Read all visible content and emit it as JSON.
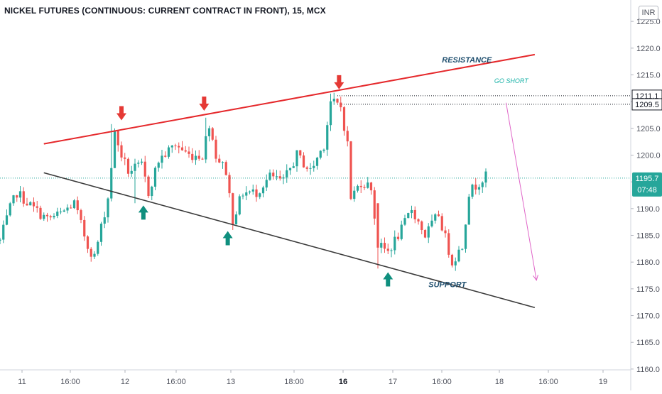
{
  "title": "NICKEL FUTURES (CONTINUOUS: CURRENT CONTRACT IN FRONT), 15, MCX",
  "currency": "INR",
  "colors": {
    "up": "#26a69a",
    "down": "#ef5350",
    "resistance": "#e5282b",
    "support": "#3a3a3a",
    "annotation_text": "#1e4e6e",
    "go_short_text": "#1bb3a8",
    "projection": "#e066c8",
    "up_arrow": "#0f8f7e",
    "down_arrow": "#e53935",
    "price_badge": "#26a69a"
  },
  "chart_data": {
    "type": "candlestick",
    "y_axis": {
      "ticks": [
        "1160.0",
        "1165.0",
        "1170.0",
        "1175.0",
        "1180.0",
        "1185.0",
        "1190.0",
        "1195.0",
        "1200.0",
        "1205.0",
        "1210.0",
        "1215.0",
        "1220.0",
        "1225.0"
      ],
      "range": [
        1156,
        1229
      ]
    },
    "x_axis": {
      "ticks": [
        {
          "label": "11",
          "bold": false
        },
        {
          "label": "16:00",
          "bold": false
        },
        {
          "label": "12",
          "bold": false
        },
        {
          "label": "16:00",
          "bold": false
        },
        {
          "label": "13",
          "bold": false
        },
        {
          "label": "18:00",
          "bold": false
        },
        {
          "label": "16",
          "bold": true
        },
        {
          "label": "17",
          "bold": false
        },
        {
          "label": "16:00",
          "bold": false
        },
        {
          "label": "18",
          "bold": false
        },
        {
          "label": "16:00",
          "bold": false
        },
        {
          "label": "19",
          "bold": false
        }
      ]
    },
    "price_levels": [
      {
        "value": 1211.1,
        "label": "1211.1",
        "style": "dotted"
      },
      {
        "value": 1209.5,
        "label": "1209.5",
        "style": "dotted"
      }
    ],
    "last_price": {
      "value": 1195.7,
      "label": "1195.7",
      "countdown": "07:48"
    },
    "series": [
      {
        "name": "NICKEL FUTURES",
        "knots": [
          [
            0,
            1184
          ],
          [
            3,
            1190
          ],
          [
            5,
            1193
          ],
          [
            10,
            1190
          ],
          [
            14,
            1188
          ],
          [
            18,
            1189
          ],
          [
            22,
            1191
          ],
          [
            26,
            1183
          ],
          [
            28,
            1181
          ],
          [
            32,
            1192
          ],
          [
            34,
            1204
          ],
          [
            36,
            1200
          ],
          [
            38,
            1197
          ],
          [
            42,
            1198
          ],
          [
            44,
            1193
          ],
          [
            47,
            1199
          ],
          [
            52,
            1202
          ],
          [
            56,
            1200
          ],
          [
            60,
            1200
          ],
          [
            62,
            1206
          ],
          [
            64,
            1200
          ],
          [
            67,
            1197
          ],
          [
            69,
            1188
          ],
          [
            72,
            1193
          ],
          [
            76,
            1193
          ],
          [
            80,
            1196
          ],
          [
            84,
            1195
          ],
          [
            88,
            1200
          ],
          [
            92,
            1197
          ],
          [
            96,
            1202
          ],
          [
            98,
            1210
          ],
          [
            101,
            1209
          ],
          [
            103,
            1202
          ],
          [
            104,
            1192
          ],
          [
            107,
            1195
          ],
          [
            110,
            1194
          ],
          [
            112,
            1183
          ],
          [
            115,
            1182
          ],
          [
            119,
            1186
          ],
          [
            122,
            1190
          ],
          [
            126,
            1185
          ],
          [
            130,
            1189
          ],
          [
            134,
            1180
          ],
          [
            137,
            1183
          ],
          [
            139,
            1193
          ],
          [
            142,
            1195
          ],
          [
            144,
            1196
          ]
        ],
        "spikes": [
          {
            "i": 33,
            "high": 1205.8
          },
          {
            "i": 61,
            "high": 1207.0
          },
          {
            "i": 98,
            "high": 1211.5
          },
          {
            "i": 40,
            "low": 1191.0
          },
          {
            "i": 69,
            "low": 1186.0
          },
          {
            "i": 112,
            "low": 1178.8
          },
          {
            "i": 134,
            "low": 1179.0
          }
        ],
        "gaps": [
          {
            "i": 112,
            "open": 1191.0,
            "close": 1182.7
          }
        ]
      }
    ]
  },
  "annotations": {
    "resistance": {
      "label": "RESISTANCE",
      "start": [
        13,
        1202.1
      ],
      "end": [
        158.5,
        1218.8
      ]
    },
    "support": {
      "label": "SUPPORT",
      "start": [
        13,
        1196.7
      ],
      "end": [
        158.5,
        1171.5
      ]
    },
    "go_short": {
      "label": "GO SHORT"
    },
    "projection": {
      "start": [
        150,
        1209.8
      ],
      "end": [
        159,
        1176.6
      ]
    },
    "down_markers": [
      [
        36,
        1206.5
      ],
      [
        60.5,
        1208.3
      ],
      [
        100.5,
        1212.3
      ]
    ],
    "up_markers": [
      [
        42.5,
        1190.6
      ],
      [
        67.5,
        1185.8
      ],
      [
        115,
        1178.1
      ]
    ]
  }
}
